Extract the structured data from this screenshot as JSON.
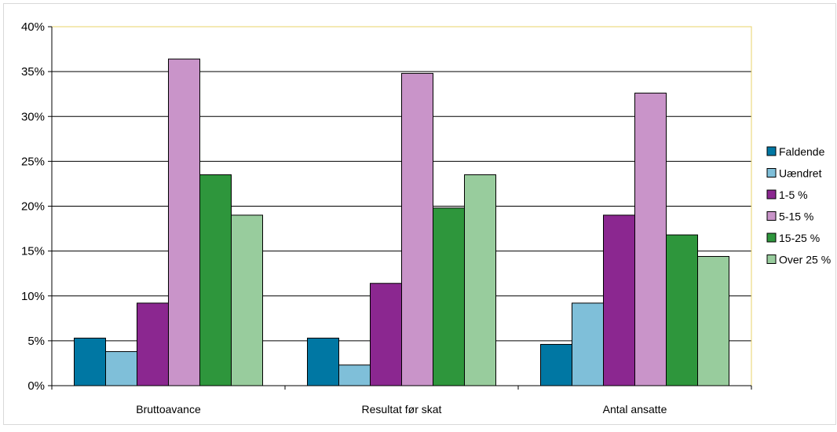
{
  "chart_data": {
    "type": "bar",
    "categories": [
      "Bruttoavance",
      "Resultat før skat",
      "Antal ansatte"
    ],
    "series": [
      {
        "name": "Faldende",
        "color": "#0077a3",
        "values": [
          5.3,
          5.3,
          4.6
        ]
      },
      {
        "name": "Uændret",
        "color": "#7fbfd9",
        "values": [
          3.8,
          2.3,
          9.2
        ]
      },
      {
        "name": "1-5 %",
        "color": "#8b2790",
        "values": [
          9.2,
          11.4,
          19.0
        ]
      },
      {
        "name": "5-15 %",
        "color": "#c994c9",
        "values": [
          36.4,
          34.8,
          32.6
        ]
      },
      {
        "name": "15-25 %",
        "color": "#2e963c",
        "values": [
          23.5,
          19.8,
          16.8
        ]
      },
      {
        "name": "Over 25 %",
        "color": "#98cc9d",
        "values": [
          19.0,
          23.5,
          14.4
        ]
      }
    ],
    "ylim": [
      0,
      40
    ],
    "y_ticks": [
      "0%",
      "5%",
      "10%",
      "15%",
      "20%",
      "25%",
      "30%",
      "35%",
      "40%"
    ],
    "y_tick_values": [
      0,
      5,
      10,
      15,
      20,
      25,
      30,
      35,
      40
    ],
    "grid": true,
    "legend_position": "right",
    "plot_border_color": "#e8d36a",
    "title": "",
    "xlabel": "",
    "ylabel": ""
  }
}
